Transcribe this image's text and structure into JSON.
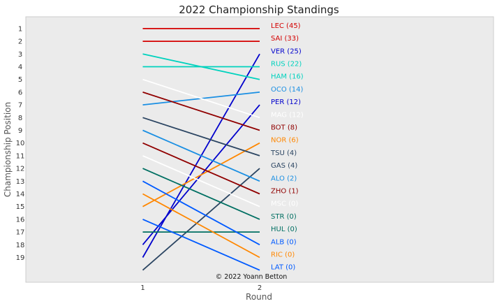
{
  "chart_data": {
    "type": "line",
    "title": "2022 Championship Standings",
    "xlabel": "Round",
    "ylabel": "Championship Position",
    "x": [
      1,
      2
    ],
    "xlim": [
      0,
      4
    ],
    "ylim": [
      0,
      20
    ],
    "y_inverted": true,
    "y_ticks": [
      1,
      2,
      3,
      4,
      5,
      6,
      7,
      8,
      9,
      10,
      11,
      12,
      13,
      14,
      15,
      16,
      17,
      18,
      19
    ],
    "background": "#ebebeb",
    "grid": false,
    "series": [
      {
        "name": "LEC (45)",
        "positions": [
          1,
          1
        ],
        "color": "#d40000"
      },
      {
        "name": "SAI (33)",
        "positions": [
          2,
          2
        ],
        "color": "#d40000"
      },
      {
        "name": "VER (25)",
        "positions": [
          19,
          3
        ],
        "color": "#0000cc"
      },
      {
        "name": "RUS (22)",
        "positions": [
          4,
          4
        ],
        "color": "#00d2be"
      },
      {
        "name": "HAM (16)",
        "positions": [
          3,
          5
        ],
        "color": "#00d2be"
      },
      {
        "name": "OCO (14)",
        "positions": [
          7,
          6
        ],
        "color": "#1a8fe3"
      },
      {
        "name": "PER (12)",
        "positions": [
          18,
          7
        ],
        "color": "#0000cc"
      },
      {
        "name": "MAG (12)",
        "positions": [
          5,
          8
        ],
        "color": "#ffffff"
      },
      {
        "name": "BOT (8)",
        "positions": [
          6,
          9
        ],
        "color": "#900000"
      },
      {
        "name": "NOR (6)",
        "positions": [
          15,
          10
        ],
        "color": "#ff8700"
      },
      {
        "name": "TSU (4)",
        "positions": [
          8,
          11
        ],
        "color": "#2b4562"
      },
      {
        "name": "GAS (4)",
        "positions": [
          20,
          12
        ],
        "color": "#2b4562"
      },
      {
        "name": "ALO (2)",
        "positions": [
          9,
          13
        ],
        "color": "#1a8fe3"
      },
      {
        "name": "ZHO (1)",
        "positions": [
          10,
          14
        ],
        "color": "#900000"
      },
      {
        "name": "MSC (0)",
        "positions": [
          11,
          15
        ],
        "color": "#ffffff"
      },
      {
        "name": "STR (0)",
        "positions": [
          12,
          16
        ],
        "color": "#006f62"
      },
      {
        "name": "HUL (0)",
        "positions": [
          17,
          17
        ],
        "color": "#006f62"
      },
      {
        "name": "ALB (0)",
        "positions": [
          13,
          18
        ],
        "color": "#005aff"
      },
      {
        "name": "RIC (0)",
        "positions": [
          14,
          19
        ],
        "color": "#ff8700"
      },
      {
        "name": "LAT (0)",
        "positions": [
          16,
          20
        ],
        "color": "#005aff"
      }
    ],
    "annotation": "© 2022 Yoann Betton"
  }
}
